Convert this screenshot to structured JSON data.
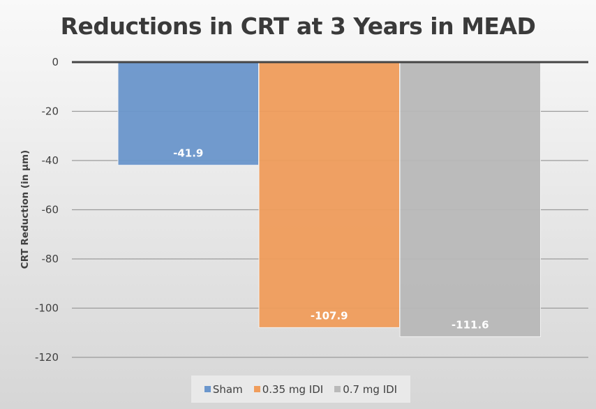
{
  "chart_data": {
    "type": "bar",
    "title": "Reductions in CRT at 3 Years in MEAD",
    "xlabel": "",
    "ylabel": "CRT Reduction (in µm)",
    "ylim": [
      -120,
      0
    ],
    "yticks": [
      0,
      -20,
      -40,
      -60,
      -80,
      -100,
      -120
    ],
    "ytick_labels": [
      "0",
      "-20",
      "-40",
      "-60",
      "-80",
      "-100",
      "-120"
    ],
    "grid": true,
    "legend_position": "bottom-center",
    "categories": [
      ""
    ],
    "series": [
      {
        "name": "Sham",
        "values": [
          -41.9
        ],
        "label": "-41.9",
        "color": "#6b96cc"
      },
      {
        "name": "0.35 mg IDI",
        "values": [
          -107.9
        ],
        "label": "-107.9",
        "color": "#f09d5c"
      },
      {
        "name": "0.7 mg IDI",
        "values": [
          -111.6
        ],
        "label": "-111.6",
        "color": "#b9b9b9"
      }
    ]
  }
}
